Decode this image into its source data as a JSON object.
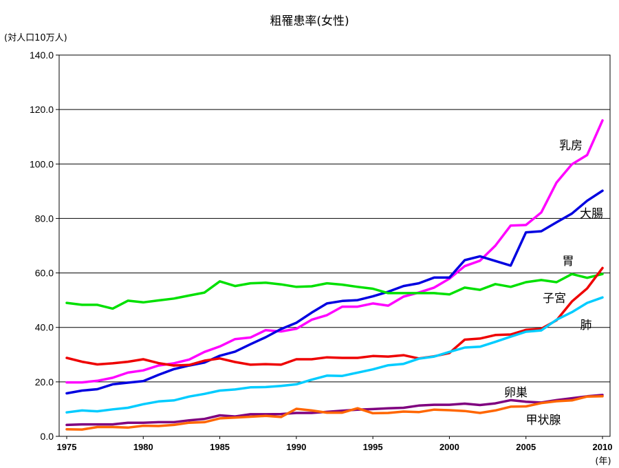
{
  "chart_data": {
    "type": "line",
    "title": "粗罹患率(女性)",
    "ylabel": "(対人口10万人)",
    "xlabel": "(年)",
    "x_range": [
      1975,
      2010
    ],
    "ylim": [
      0,
      140
    ],
    "y_ticks": [
      "0.0",
      "20.0",
      "40.0",
      "60.0",
      "80.0",
      "100.0",
      "120.0",
      "140.0"
    ],
    "x_ticks": [
      "1975",
      "1980",
      "1985",
      "1990",
      "1995",
      "2000",
      "2005",
      "2010"
    ],
    "grid": true,
    "x": [
      1975,
      1976,
      1977,
      1978,
      1979,
      1980,
      1981,
      1982,
      1983,
      1984,
      1985,
      1986,
      1987,
      1988,
      1989,
      1990,
      1991,
      1992,
      1993,
      1994,
      1995,
      1996,
      1997,
      1998,
      1999,
      2000,
      2001,
      2002,
      2003,
      2004,
      2005,
      2006,
      2007,
      2008,
      2009,
      2010
    ],
    "series": [
      {
        "name": "乳房",
        "color": "#ff00ff",
        "values": [
          19.8,
          19.8,
          20.4,
          21.5,
          23.4,
          24.2,
          26.0,
          26.8,
          28.2,
          31.0,
          33.0,
          35.7,
          36.3,
          39.0,
          38.5,
          39.5,
          42.8,
          44.5,
          47.6,
          47.6,
          48.8,
          48.0,
          51.3,
          52.8,
          54.6,
          57.9,
          62.5,
          64.5,
          70.0,
          77.4,
          77.6,
          82.2,
          93.2,
          99.9,
          103.3,
          116.0
        ]
      },
      {
        "name": "大腸",
        "color": "#0000e0",
        "values": [
          15.8,
          16.8,
          17.3,
          19.1,
          19.7,
          20.3,
          22.6,
          24.7,
          26.0,
          27.1,
          29.6,
          31.1,
          33.8,
          36.4,
          39.4,
          41.7,
          45.4,
          48.8,
          49.7,
          50.0,
          51.4,
          53.1,
          55.2,
          56.2,
          58.3,
          58.3,
          64.7,
          66.1,
          64.4,
          62.7,
          74.9,
          75.3,
          78.6,
          81.8,
          86.5,
          90.2
        ]
      },
      {
        "name": "胃",
        "color": "#00e000",
        "values": [
          49.0,
          48.3,
          48.3,
          46.9,
          49.8,
          49.2,
          49.9,
          50.6,
          51.7,
          52.8,
          56.9,
          55.2,
          56.2,
          56.4,
          55.8,
          54.9,
          55.1,
          56.2,
          55.7,
          54.9,
          54.2,
          52.6,
          52.6,
          52.6,
          52.6,
          52.1,
          54.6,
          53.8,
          55.9,
          54.9,
          56.6,
          57.4,
          56.6,
          59.6,
          58.2,
          59.6
        ]
      },
      {
        "name": "子宮",
        "color": "#ee0000",
        "values": [
          28.8,
          27.4,
          26.4,
          26.8,
          27.4,
          28.3,
          26.9,
          26.0,
          26.2,
          27.8,
          28.6,
          27.3,
          26.3,
          26.5,
          26.3,
          28.3,
          28.3,
          29.0,
          28.8,
          28.8,
          29.5,
          29.3,
          29.8,
          28.6,
          29.4,
          30.6,
          35.5,
          35.9,
          37.2,
          37.4,
          39.1,
          39.5,
          42.6,
          49.5,
          54.3,
          61.8
        ]
      },
      {
        "name": "肺",
        "color": "#00ccff",
        "values": [
          8.8,
          9.5,
          9.2,
          9.9,
          10.5,
          11.8,
          12.8,
          13.2,
          14.6,
          15.6,
          16.8,
          17.2,
          18.0,
          18.1,
          18.5,
          19.1,
          20.8,
          22.3,
          22.2,
          23.4,
          24.6,
          26.1,
          26.6,
          28.5,
          29.3,
          31.0,
          32.6,
          32.9,
          34.7,
          36.6,
          38.4,
          38.9,
          42.8,
          45.6,
          49.0,
          51.0
        ]
      },
      {
        "name": "卵巣",
        "color": "#7f007f",
        "values": [
          4.2,
          4.4,
          4.4,
          4.4,
          5.0,
          5.0,
          5.2,
          5.2,
          5.9,
          6.4,
          7.7,
          7.3,
          8.1,
          8.1,
          8.2,
          8.6,
          8.6,
          9.0,
          9.4,
          9.8,
          10.0,
          10.3,
          10.5,
          11.3,
          11.6,
          11.6,
          12.0,
          11.5,
          12.1,
          13.3,
          12.7,
          12.4,
          13.3,
          14.0,
          14.7,
          15.2
        ]
      },
      {
        "name": "甲状腺",
        "color": "#ff6600",
        "values": [
          2.6,
          2.5,
          3.4,
          3.4,
          3.2,
          3.9,
          3.8,
          4.2,
          5.0,
          5.2,
          6.6,
          6.9,
          7.2,
          7.5,
          7.1,
          10.1,
          9.5,
          8.7,
          8.7,
          10.3,
          8.5,
          8.6,
          9.1,
          8.9,
          9.8,
          9.6,
          9.3,
          8.6,
          9.5,
          10.9,
          11.0,
          12.2,
          12.9,
          13.2,
          14.6,
          14.7
        ]
      }
    ]
  }
}
